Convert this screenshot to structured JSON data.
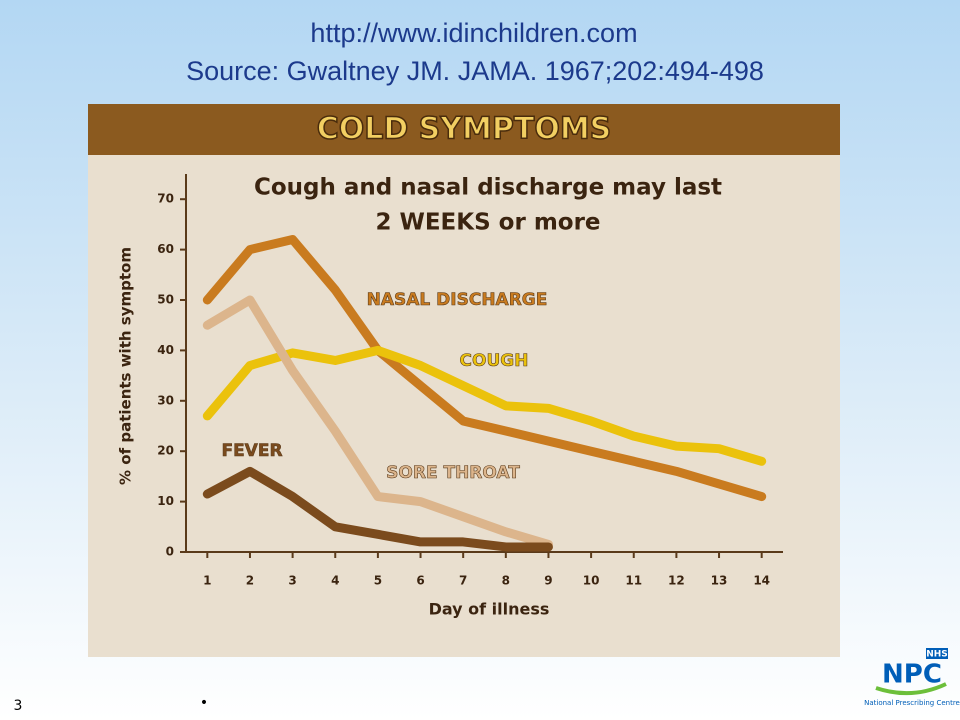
{
  "header": {
    "url": "http://www.idinchildren.com",
    "source": "Source: Gwaltney JM. JAMA. 1967;202:494-498"
  },
  "chart_data": {
    "type": "line",
    "title": "COLD SYMPTOMS",
    "subtitle": [
      "Cough and nasal discharge may last",
      "2 WEEKS or more"
    ],
    "x_label": "Day of illness",
    "y_label": "% of patients with symptom",
    "x": [
      1,
      2,
      3,
      4,
      5,
      6,
      7,
      8,
      9,
      10,
      11,
      12,
      13,
      14
    ],
    "xlim": [
      0.5,
      14.5
    ],
    "xticks": [
      1,
      2,
      3,
      4,
      5,
      6,
      7,
      8,
      9,
      10,
      11,
      12,
      13,
      14
    ],
    "ylim": [
      0,
      75
    ],
    "yticks": [
      0,
      10,
      20,
      30,
      40,
      50,
      60,
      70
    ],
    "series": [
      {
        "name": "NASAL DISCHARGE",
        "color": "#c97b1f",
        "values": [
          50,
          60,
          62,
          52,
          40,
          33,
          26,
          24,
          22,
          20,
          18,
          16,
          13.5,
          11
        ]
      },
      {
        "name": "COUGH",
        "color": "#ebc20c",
        "values": [
          27,
          37,
          39.5,
          38,
          40,
          37,
          33,
          29,
          28.5,
          26,
          23,
          21,
          20.5,
          18
        ]
      },
      {
        "name": "SORE THROAT",
        "color": "#dcb58c",
        "values": [
          45,
          50,
          36,
          24,
          11,
          10,
          7,
          4,
          1.5,
          null,
          null,
          null,
          null,
          null
        ]
      },
      {
        "name": "FEVER",
        "color": "#7b4b1d",
        "values": [
          11.5,
          16,
          11,
          5,
          3.5,
          2,
          2,
          1,
          1,
          null,
          null,
          null,
          null,
          null
        ]
      }
    ]
  },
  "footer": {
    "slide_number": "3",
    "bullet": "•",
    "logo": {
      "badge": "NHS",
      "name": "NPC",
      "caption": "National Prescribing Centre"
    }
  }
}
